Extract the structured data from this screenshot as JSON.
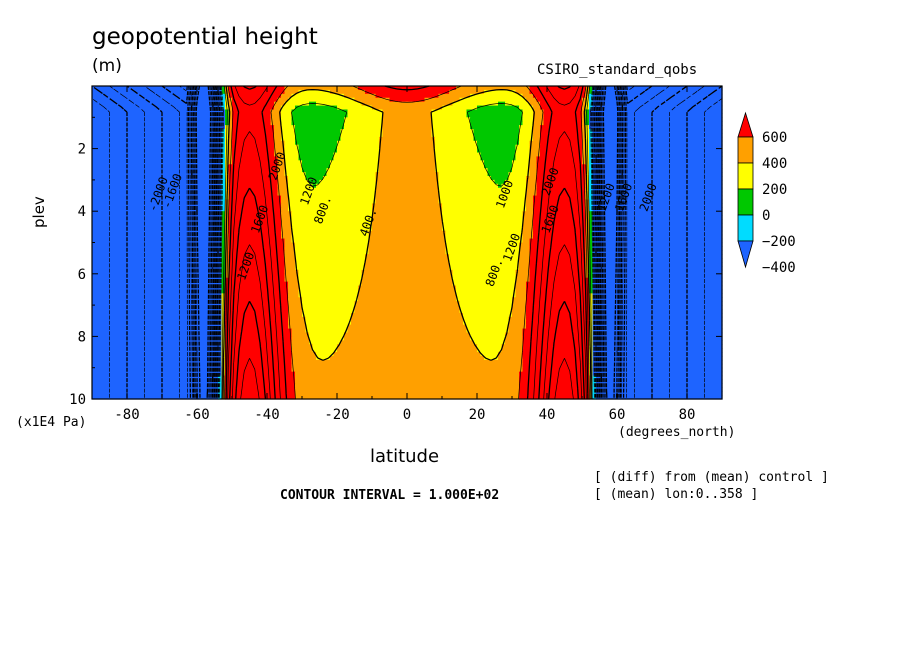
{
  "chart_data": {
    "type": "heatmap",
    "title": "geopotential height",
    "units": "(m)",
    "model_label": "CSIRO_standard_qobs",
    "xlabel": "latitude",
    "x_units": "(degrees_north)",
    "ylabel": "plev",
    "y_units": "(x1E4 Pa)",
    "xlim": [
      -90,
      90
    ],
    "ylim": [
      10,
      0
    ],
    "x_ticks": [
      -80,
      -60,
      -40,
      -20,
      0,
      20,
      40,
      60,
      80
    ],
    "y_ticks": [
      2,
      4,
      6,
      8,
      10
    ],
    "contour_interval_text": "CONTOUR INTERVAL = 1.000E+02",
    "notes": [
      "[ (diff) from (mean) control ]",
      "[ (mean) lon:0..358 ]"
    ],
    "colorbar": {
      "labels": [
        "600",
        "400",
        "200",
        "0",
        "−200",
        "−400"
      ],
      "levels": [
        -400,
        -200,
        0,
        200,
        400,
        600
      ],
      "colors": [
        "#1e64ff",
        "#00dcff",
        "#00c800",
        "#ffff00",
        "#ffa000",
        "#ff0000"
      ]
    },
    "contour_labels": [
      {
        "text": "-2000",
        "lat": -70,
        "plev": 3.5
      },
      {
        "text": "-1600",
        "lat": -66,
        "plev": 3.4
      },
      {
        "text": "2000",
        "lat": -36,
        "plev": 2.6
      },
      {
        "text": "1600",
        "lat": -41,
        "plev": 4.3
      },
      {
        "text": "1200",
        "lat": -27,
        "plev": 3.4
      },
      {
        "text": "800.",
        "lat": -23,
        "plev": 4.0
      },
      {
        "text": "400.",
        "lat": -10,
        "plev": 4.4
      },
      {
        "text": "1200",
        "lat": -45,
        "plev": 5.8
      },
      {
        "text": "1000",
        "lat": 29,
        "plev": 3.5
      },
      {
        "text": "1200",
        "lat": 31,
        "plev": 5.2
      },
      {
        "text": "800.",
        "lat": 26,
        "plev": 6.0
      },
      {
        "text": "2000",
        "lat": 42,
        "plev": 3.1
      },
      {
        "text": "1600",
        "lat": 42,
        "plev": 4.3
      },
      {
        "text": "1200",
        "lat": 58,
        "plev": 3.6
      },
      {
        "text": "1600",
        "lat": 63,
        "plev": 3.6
      },
      {
        "text": "2000",
        "lat": 70,
        "plev": 3.6
      }
    ]
  }
}
